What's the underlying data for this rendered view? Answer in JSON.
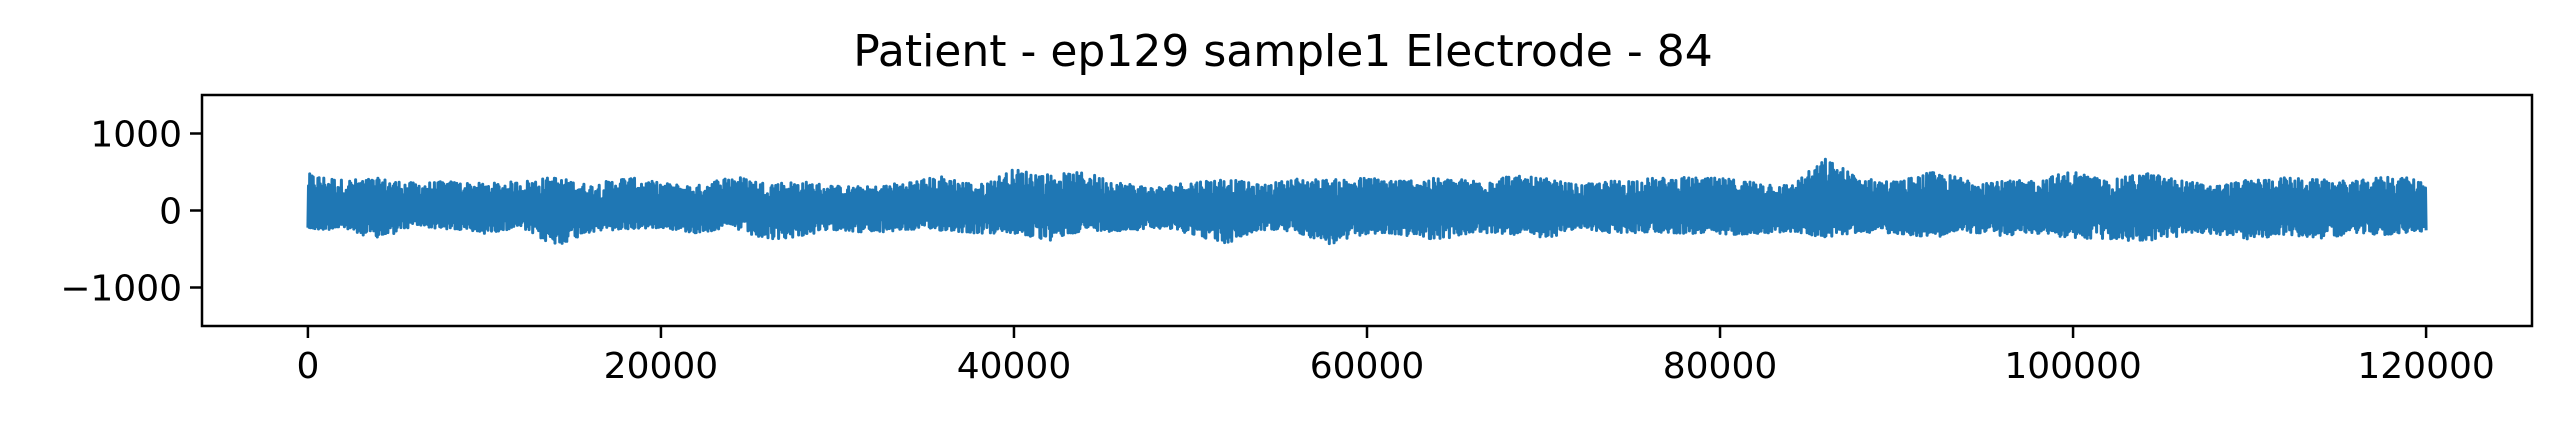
{
  "chart_data": {
    "type": "line",
    "title": "Patient - ep129 sample1 Electrode - 84",
    "xlabel": "",
    "ylabel": "",
    "xlim": [
      -6000,
      126000
    ],
    "ylim": [
      -1500,
      1500
    ],
    "xticks": [
      0,
      20000,
      40000,
      60000,
      80000,
      100000,
      120000
    ],
    "xtick_labels": [
      "0",
      "20000",
      "40000",
      "60000",
      "80000",
      "100000",
      "120000"
    ],
    "yticks": [
      1000,
      0,
      -1000
    ],
    "ytick_labels": [
      "1000",
      "0",
      "−1000"
    ],
    "grid": false,
    "legend": "none",
    "series": [
      {
        "color": "#1f77b4",
        "sample_count": 120000,
        "envelope_x": [
          0,
          2000,
          4000,
          6000,
          8000,
          10000,
          12000,
          14000,
          16000,
          18000,
          20000,
          22000,
          24000,
          26000,
          28000,
          30000,
          32000,
          34000,
          36000,
          38000,
          40000,
          42000,
          44000,
          46000,
          48000,
          50000,
          52000,
          54000,
          56000,
          58000,
          60000,
          62000,
          64000,
          66000,
          68000,
          70000,
          72000,
          74000,
          76000,
          78000,
          80000,
          82000,
          84000,
          86000,
          88000,
          90000,
          92000,
          94000,
          96000,
          98000,
          100000,
          102000,
          104000,
          106000,
          108000,
          110000,
          112000,
          114000,
          116000,
          118000,
          120000
        ],
        "envelope_max": [
          480,
          400,
          420,
          360,
          380,
          350,
          380,
          440,
          330,
          440,
          360,
          320,
          460,
          360,
          380,
          320,
          310,
          380,
          450,
          330,
          540,
          470,
          500,
          370,
          300,
          380,
          420,
          330,
          420,
          400,
          430,
          400,
          420,
          400,
          460,
          420,
          330,
          390,
          420,
          430,
          420,
          380,
          330,
          680,
          420,
          380,
          500,
          420,
          380,
          400,
          520,
          380,
          500,
          400,
          320,
          400,
          430,
          400,
          380,
          460,
          380
        ],
        "envelope_min": [
          -260,
          -240,
          -380,
          -200,
          -250,
          -300,
          -220,
          -470,
          -280,
          -250,
          -220,
          -300,
          -220,
          -400,
          -330,
          -250,
          -300,
          -250,
          -260,
          -300,
          -300,
          -400,
          -250,
          -280,
          -220,
          -300,
          -440,
          -250,
          -280,
          -450,
          -300,
          -320,
          -380,
          -300,
          -300,
          -380,
          -230,
          -300,
          -280,
          -300,
          -320,
          -300,
          -280,
          -350,
          -280,
          -300,
          -350,
          -280,
          -330,
          -300,
          -360,
          -380,
          -400,
          -340,
          -300,
          -380,
          -320,
          -360,
          -300,
          -320,
          -260
        ]
      }
    ]
  }
}
